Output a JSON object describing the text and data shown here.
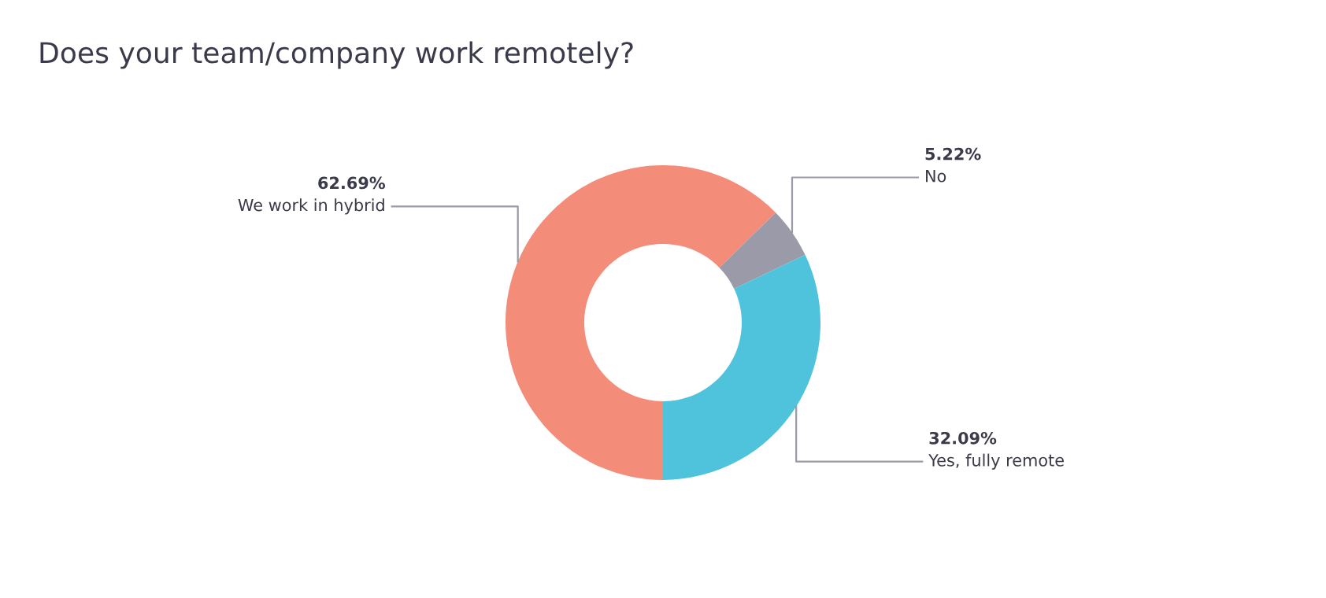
{
  "chart_data": {
    "type": "donut",
    "title": "Does your team/company work remotely?",
    "categories": [
      "We work in hybrid",
      "No",
      "Yes, fully remote"
    ],
    "values": [
      62.69,
      5.22,
      32.09
    ],
    "colors": [
      "#f48c7a",
      "#9a9aa8",
      "#4fc3dc"
    ],
    "value_labels": [
      "62.69%",
      "5.22%",
      "32.09%"
    ]
  }
}
